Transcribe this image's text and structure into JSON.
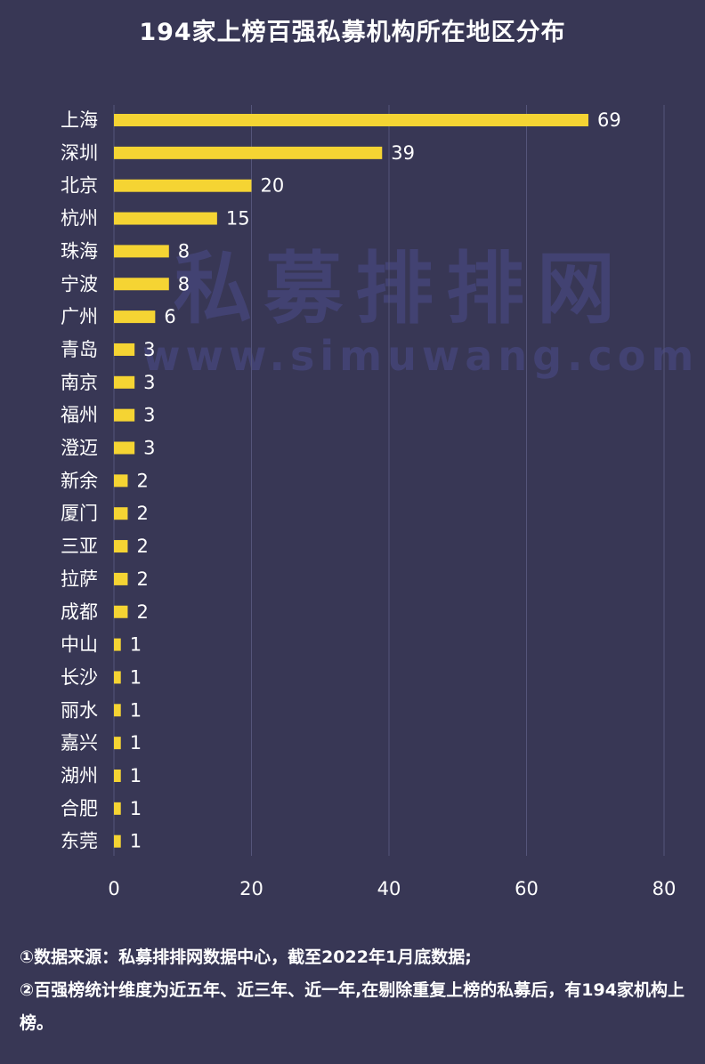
{
  "title": "194家上榜百强私募机构所在地区分布",
  "watermark": {
    "name": "私募排排网",
    "url": "www.simuwang.com"
  },
  "notes": [
    "①数据来源：私募排排网数据中心，截至2022年1月底数据;",
    "②百强榜统计维度为近五年、近三年、近一年,在剔除重复上榜的私募后，有194家机构上榜。"
  ],
  "colors": {
    "background": "#383755",
    "bar": "#f5d433",
    "grid": "#55557a",
    "text": "#ffffff"
  },
  "chart_data": {
    "type": "bar",
    "orientation": "horizontal",
    "categories": [
      "上海",
      "深圳",
      "北京",
      "杭州",
      "珠海",
      "宁波",
      "广州",
      "青岛",
      "南京",
      "福州",
      "澄迈",
      "新余",
      "厦门",
      "三亚",
      "拉萨",
      "成都",
      "中山",
      "长沙",
      "丽水",
      "嘉兴",
      "湖州",
      "合肥",
      "东莞"
    ],
    "values": [
      69,
      39,
      20,
      15,
      8,
      8,
      6,
      3,
      3,
      3,
      3,
      2,
      2,
      2,
      2,
      2,
      1,
      1,
      1,
      1,
      1,
      1,
      1
    ],
    "xlim": [
      0,
      80
    ],
    "xticks": [
      0,
      20,
      40,
      60,
      80
    ],
    "grid": true,
    "data_labels": true
  }
}
